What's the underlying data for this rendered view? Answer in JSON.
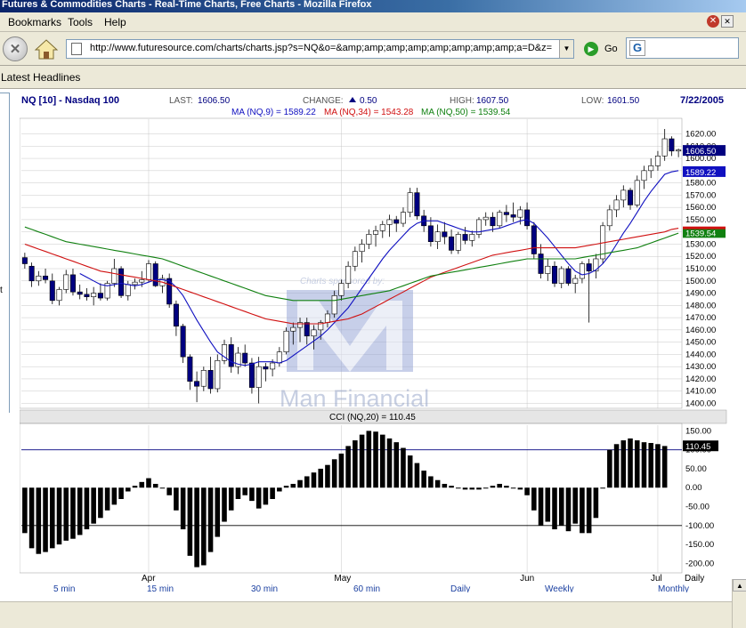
{
  "window": {
    "title": "Futures & Commodities Charts - Real-Time Charts, Free Charts - Mozilla Firefox"
  },
  "menu": {
    "items": [
      "Bookmarks",
      "Tools",
      "Help"
    ]
  },
  "toolbar": {
    "url": "http://www.futuresource.com/charts/charts.jsp?s=NQ&o=&amp;amp;amp;amp;amp;amp;amp;amp;a=D&z=",
    "go_label": "Go"
  },
  "headlines": {
    "label": "Latest Headlines"
  },
  "left_frame": {
    "text": "t"
  },
  "chart": {
    "symbol": "NQ [10] - Nasdaq 100",
    "last_label": "LAST:",
    "last_value": "1606.50",
    "change_label": "CHANGE:",
    "change_value": "0.50",
    "high_label": "HIGH:",
    "high_value": "1607.50",
    "low_label": "LOW:",
    "low_value": "1601.50",
    "date": "7/22/2005",
    "ma_text": [
      {
        "text": "MA (NQ,9) = 1589.22",
        "color": "#1010c0"
      },
      {
        "text": "MA (NQ,34) = 1543.28",
        "color": "#d01010"
      },
      {
        "text": "MA (NQ,50) = 1539.54",
        "color": "#108010"
      }
    ],
    "watermark_sponsored": "Charts sponsored by:",
    "watermark_company": "Man Financial",
    "cci_title": "CCI (NQ,20) = 110.45",
    "price_badges": [
      {
        "value": "1606.50",
        "bg": "#000080"
      },
      {
        "value": "1589.22",
        "bg": "#1010c0"
      },
      {
        "value": "1539.54",
        "bg": "#108010"
      }
    ],
    "cci_badge": "110.45",
    "bottom_labels": [
      "5 min",
      "15 min",
      "30 min",
      "60 min",
      "Daily",
      "Weekly",
      "Monthly"
    ],
    "daily_label": "Daily",
    "colors": {
      "up_fill": "#ffffff",
      "down_fill": "#000080",
      "ma9": "#1010c0",
      "ma34": "#d01010",
      "ma50": "#108010",
      "grid": "#c8c8c8"
    }
  },
  "chart_data": [
    {
      "type": "candlestick",
      "title": "NQ [10] - Nasdaq 100",
      "x_tick_labels": [
        "Apr",
        "May",
        "Jun",
        "Jul"
      ],
      "y_ticks": [
        1400,
        1410,
        1420,
        1430,
        1440,
        1450,
        1460,
        1470,
        1480,
        1490,
        1500,
        1510,
        1520,
        1530,
        1540,
        1550,
        1560,
        1570,
        1580,
        1590,
        1600,
        1610,
        1620
      ],
      "ylim": [
        1396,
        1632
      ],
      "grid": true,
      "ohlc": [
        [
          1519,
          1523,
          1510,
          1514
        ],
        [
          1512,
          1515,
          1495,
          1500
        ],
        [
          1500,
          1508,
          1496,
          1504
        ],
        [
          1504,
          1510,
          1498,
          1501
        ],
        [
          1500,
          1506,
          1481,
          1484
        ],
        [
          1484,
          1495,
          1480,
          1493
        ],
        [
          1493,
          1509,
          1490,
          1505
        ],
        [
          1505,
          1510,
          1488,
          1491
        ],
        [
          1491,
          1497,
          1485,
          1489
        ],
        [
          1489,
          1494,
          1484,
          1487
        ],
        [
          1487,
          1495,
          1480,
          1490
        ],
        [
          1490,
          1498,
          1484,
          1486
        ],
        [
          1486,
          1500,
          1484,
          1498
        ],
        [
          1498,
          1518,
          1495,
          1510
        ],
        [
          1510,
          1512,
          1486,
          1488
        ],
        [
          1488,
          1500,
          1484,
          1497
        ],
        [
          1497,
          1502,
          1493,
          1499
        ],
        [
          1499,
          1508,
          1495,
          1501
        ],
        [
          1501,
          1517,
          1499,
          1514
        ],
        [
          1514,
          1516,
          1495,
          1496
        ],
        [
          1496,
          1505,
          1490,
          1502
        ],
        [
          1502,
          1506,
          1478,
          1481
        ],
        [
          1481,
          1484,
          1455,
          1463
        ],
        [
          1463,
          1465,
          1433,
          1438
        ],
        [
          1438,
          1440,
          1411,
          1418
        ],
        [
          1418,
          1426,
          1401,
          1414
        ],
        [
          1414,
          1430,
          1410,
          1427
        ],
        [
          1427,
          1438,
          1408,
          1412
        ],
        [
          1412,
          1440,
          1409,
          1435
        ],
        [
          1435,
          1452,
          1432,
          1448
        ],
        [
          1448,
          1454,
          1425,
          1430
        ],
        [
          1430,
          1446,
          1424,
          1441
        ],
        [
          1441,
          1448,
          1430,
          1433
        ],
        [
          1433,
          1437,
          1408,
          1413
        ],
        [
          1413,
          1438,
          1400,
          1430
        ],
        [
          1430,
          1433,
          1418,
          1428
        ],
        [
          1428,
          1436,
          1422,
          1433
        ],
        [
          1433,
          1446,
          1430,
          1442
        ],
        [
          1442,
          1462,
          1440,
          1459
        ],
        [
          1459,
          1466,
          1448,
          1462
        ],
        [
          1462,
          1470,
          1450,
          1466
        ],
        [
          1466,
          1470,
          1448,
          1455
        ],
        [
          1455,
          1464,
          1444,
          1460
        ],
        [
          1460,
          1468,
          1452,
          1466
        ],
        [
          1466,
          1476,
          1462,
          1473
        ],
        [
          1473,
          1492,
          1470,
          1488
        ],
        [
          1488,
          1501,
          1484,
          1498
        ],
        [
          1498,
          1516,
          1494,
          1512
        ],
        [
          1512,
          1528,
          1508,
          1524
        ],
        [
          1524,
          1534,
          1515,
          1530
        ],
        [
          1530,
          1542,
          1526,
          1538
        ],
        [
          1538,
          1545,
          1528,
          1541
        ],
        [
          1541,
          1549,
          1535,
          1546
        ],
        [
          1546,
          1554,
          1536,
          1550
        ],
        [
          1550,
          1553,
          1540,
          1547
        ],
        [
          1547,
          1560,
          1544,
          1556
        ],
        [
          1556,
          1576,
          1552,
          1572
        ],
        [
          1572,
          1576,
          1550,
          1553
        ],
        [
          1553,
          1558,
          1540,
          1545
        ],
        [
          1545,
          1552,
          1528,
          1532
        ],
        [
          1532,
          1546,
          1526,
          1540
        ],
        [
          1540,
          1548,
          1530,
          1536
        ],
        [
          1536,
          1542,
          1522,
          1525
        ],
        [
          1525,
          1540,
          1522,
          1538
        ],
        [
          1538,
          1544,
          1530,
          1533
        ],
        [
          1533,
          1541,
          1528,
          1538
        ],
        [
          1538,
          1552,
          1535,
          1550
        ],
        [
          1550,
          1556,
          1545,
          1552
        ],
        [
          1552,
          1556,
          1540,
          1545
        ],
        [
          1545,
          1558,
          1543,
          1556
        ],
        [
          1556,
          1562,
          1548,
          1554
        ],
        [
          1554,
          1564,
          1548,
          1552
        ],
        [
          1552,
          1561,
          1546,
          1558
        ],
        [
          1558,
          1564,
          1542,
          1545
        ],
        [
          1545,
          1548,
          1518,
          1522
        ],
        [
          1522,
          1530,
          1502,
          1506
        ],
        [
          1506,
          1518,
          1500,
          1512
        ],
        [
          1512,
          1516,
          1495,
          1498
        ],
        [
          1498,
          1512,
          1494,
          1510
        ],
        [
          1510,
          1512,
          1496,
          1498
        ],
        [
          1498,
          1505,
          1490,
          1502
        ],
        [
          1502,
          1516,
          1498,
          1514
        ],
        [
          1514,
          1518,
          1466,
          1508
        ],
        [
          1508,
          1522,
          1502,
          1518
        ],
        [
          1518,
          1548,
          1514,
          1545
        ],
        [
          1545,
          1562,
          1541,
          1558
        ],
        [
          1558,
          1570,
          1552,
          1566
        ],
        [
          1566,
          1578,
          1560,
          1574
        ],
        [
          1574,
          1576,
          1558,
          1562
        ],
        [
          1562,
          1586,
          1560,
          1582
        ],
        [
          1582,
          1594,
          1575,
          1590
        ],
        [
          1590,
          1600,
          1584,
          1594
        ],
        [
          1594,
          1606,
          1590,
          1602
        ],
        [
          1602,
          1624,
          1598,
          1616
        ],
        [
          1616,
          1618,
          1602,
          1606
        ],
        [
          1606,
          1608,
          1601,
          1607
        ]
      ],
      "series": [
        {
          "name": "MA (NQ,9)",
          "values": [
            null,
            null,
            null,
            null,
            null,
            null,
            null,
            null,
            1506,
            1503,
            1500,
            1497,
            1496,
            1497,
            1498,
            1497,
            1496,
            1497,
            1499,
            1501,
            1501,
            1500,
            1495,
            1488,
            1478,
            1468,
            1459,
            1450,
            1442,
            1438,
            1434,
            1432,
            1431,
            1432,
            1434,
            1434,
            1434,
            1433,
            1435,
            1439,
            1443,
            1447,
            1451,
            1455,
            1460,
            1466,
            1472,
            1478,
            1486,
            1494,
            1502,
            1510,
            1518,
            1525,
            1531,
            1537,
            1543,
            1547,
            1549,
            1549,
            1549,
            1547,
            1545,
            1543,
            1541,
            1540,
            1540,
            1541,
            1542,
            1543,
            1545,
            1547,
            1549,
            1550,
            1547,
            1541,
            1535,
            1528,
            1521,
            1514,
            1508,
            1505,
            1506,
            1509,
            1514,
            1521,
            1530,
            1539,
            1547,
            1556,
            1565,
            1573,
            1580,
            1587,
            1589,
            1590
          ]
        },
        {
          "name": "MA (NQ,34)",
          "values": [
            1530,
            1528,
            1526,
            1524,
            1522,
            1520,
            1518,
            1516,
            1514,
            1512,
            1510,
            1508,
            1507,
            1506,
            1505,
            1504,
            1503,
            1502,
            1501,
            1500,
            1499,
            1497,
            1495,
            1493,
            1491,
            1489,
            1487,
            1485,
            1483,
            1481,
            1479,
            1477,
            1475,
            1473,
            1471,
            1469,
            1468,
            1467,
            1466,
            1465,
            1465,
            1465,
            1465,
            1465,
            1466,
            1467,
            1468,
            1469,
            1471,
            1473,
            1476,
            1479,
            1482,
            1485,
            1488,
            1491,
            1494,
            1497,
            1500,
            1503,
            1505,
            1507,
            1509,
            1511,
            1513,
            1515,
            1517,
            1519,
            1521,
            1522,
            1523,
            1524,
            1525,
            1526,
            1527,
            1527,
            1527,
            1527,
            1527,
            1527,
            1527,
            1528,
            1529,
            1530,
            1531,
            1532,
            1533,
            1534,
            1535,
            1536,
            1537,
            1538,
            1539,
            1540,
            1542,
            1543
          ]
        },
        {
          "name": "MA (NQ,50)",
          "values": [
            1544,
            1542,
            1540,
            1538,
            1536,
            1534,
            1532,
            1531,
            1530,
            1529,
            1528,
            1527,
            1526,
            1525,
            1524,
            1523,
            1522,
            1521,
            1520,
            1519,
            1518,
            1516,
            1514,
            1512,
            1510,
            1508,
            1506,
            1504,
            1502,
            1500,
            1498,
            1496,
            1494,
            1492,
            1490,
            1488,
            1487,
            1486,
            1485,
            1484,
            1484,
            1484,
            1484,
            1484,
            1484,
            1484,
            1485,
            1486,
            1487,
            1488,
            1489,
            1490,
            1491,
            1492,
            1494,
            1496,
            1498,
            1500,
            1502,
            1504,
            1505,
            1506,
            1507,
            1508,
            1509,
            1510,
            1511,
            1512,
            1513,
            1514,
            1515,
            1516,
            1517,
            1518,
            1518,
            1518,
            1518,
            1518,
            1518,
            1518,
            1518,
            1519,
            1520,
            1521,
            1522,
            1523,
            1524,
            1525,
            1526,
            1527,
            1529,
            1531,
            1533,
            1535,
            1537,
            1539
          ]
        }
      ]
    },
    {
      "type": "bar",
      "title": "CCI (NQ,20) = 110.45",
      "y_ticks": [
        150,
        100,
        50,
        0,
        -50,
        -100,
        -150,
        -200
      ],
      "ylim": [
        -225,
        165
      ],
      "reference_lines": [
        100,
        -100
      ],
      "values": [
        -120,
        -160,
        -175,
        -170,
        -160,
        -150,
        -140,
        -135,
        -125,
        -110,
        -95,
        -80,
        -60,
        -45,
        -30,
        -10,
        5,
        15,
        25,
        10,
        0,
        -20,
        -60,
        -110,
        -180,
        -210,
        -205,
        -170,
        -130,
        -90,
        -60,
        -30,
        -20,
        -35,
        -55,
        -45,
        -30,
        -10,
        5,
        10,
        20,
        30,
        40,
        50,
        60,
        75,
        90,
        110,
        125,
        140,
        150,
        148,
        140,
        130,
        120,
        105,
        85,
        65,
        45,
        30,
        20,
        10,
        5,
        0,
        -5,
        -5,
        -5,
        0,
        5,
        10,
        5,
        0,
        -5,
        -20,
        -60,
        -100,
        -90,
        -110,
        -100,
        -115,
        -95,
        -120,
        -120,
        -80,
        0,
        100,
        115,
        125,
        130,
        125,
        120,
        118,
        115,
        110
      ]
    }
  ]
}
